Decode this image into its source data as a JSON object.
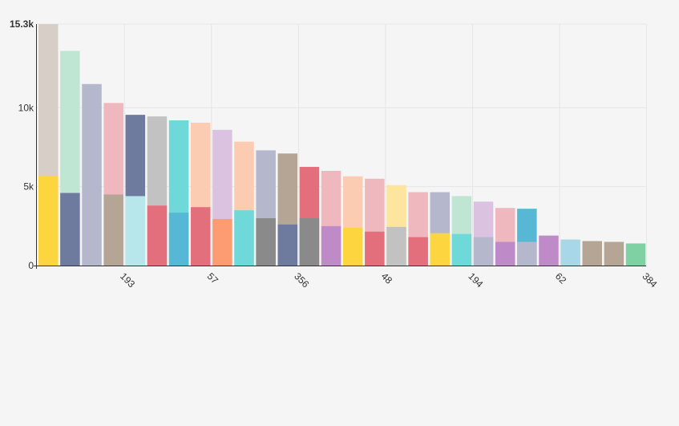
{
  "chart_data": {
    "type": "bar",
    "stacking": "overlay",
    "ylim": [
      0,
      15300
    ],
    "y_ticks": [
      {
        "value": 0,
        "label": "0"
      },
      {
        "value": 5000,
        "label": "5k"
      },
      {
        "value": 10000,
        "label": "10k"
      },
      {
        "value": 15300,
        "label": "15.3k"
      }
    ],
    "x_tick_labels": [
      {
        "after_bar": 3,
        "label": "193"
      },
      {
        "after_bar": 7,
        "label": "57"
      },
      {
        "after_bar": 11,
        "label": "356"
      },
      {
        "after_bar": 15,
        "label": "48"
      },
      {
        "after_bar": 19,
        "label": "194"
      },
      {
        "after_bar": 23,
        "label": "62"
      },
      {
        "after_bar": 27,
        "label": "384"
      }
    ],
    "grid": "on",
    "bars": [
      {
        "back": 15300,
        "back_color": "#d8cec8",
        "front": 5700,
        "front_color": "#fcd53f"
      },
      {
        "back": 13600,
        "back_color": "#bfe6d3",
        "front": 4600,
        "front_color": "#6e7a9e"
      },
      {
        "back": 11500,
        "back_color": "#b5b8cc",
        "front": null,
        "front_color": null
      },
      {
        "back": 10300,
        "back_color": "#efb8be",
        "front": 4500,
        "front_color": "#b5a595"
      },
      {
        "back": 9550,
        "back_color": "#6e7a9e",
        "front": 4400,
        "front_color": "#b7e7eb"
      },
      {
        "back": 9450,
        "back_color": "#c2c2c2",
        "front": 3800,
        "front_color": "#e46f7c"
      },
      {
        "back": 9200,
        "back_color": "#6fd8d8",
        "front": 3350,
        "front_color": "#56b8d5"
      },
      {
        "back": 9050,
        "back_color": "#fcccb2",
        "front": 3700,
        "front_color": "#e46f7c"
      },
      {
        "back": 8600,
        "back_color": "#dbc2e0",
        "front": 2950,
        "front_color": "#fd9c73"
      },
      {
        "back": 7850,
        "back_color": "#fcccb2",
        "front": 3500,
        "front_color": "#6fd8d8"
      },
      {
        "back": 7300,
        "back_color": "#b5b8cc",
        "front": 3000,
        "front_color": "#8a8a8a"
      },
      {
        "back": 7100,
        "back_color": "#b5a595",
        "front": 2600,
        "front_color": "#6e7a9e"
      },
      {
        "back": 6250,
        "back_color": "#e46f7c",
        "front": 3000,
        "front_color": "#8a8a8a"
      },
      {
        "back": 6000,
        "back_color": "#efb8be",
        "front": 2500,
        "front_color": "#bf8ac8"
      },
      {
        "back": 5650,
        "back_color": "#fcccb2",
        "front": 2400,
        "front_color": "#fcd53f"
      },
      {
        "back": 5500,
        "back_color": "#efb8be",
        "front": 2150,
        "front_color": "#e46f7c"
      },
      {
        "back": 5100,
        "back_color": "#fde59e",
        "front": 2450,
        "front_color": "#c2c2c2"
      },
      {
        "back": 4650,
        "back_color": "#efb8be",
        "front": 1800,
        "front_color": "#e46f7c"
      },
      {
        "back": 4650,
        "back_color": "#b5b8cc",
        "front": 2050,
        "front_color": "#fcd53f"
      },
      {
        "back": 4400,
        "back_color": "#bfe6d3",
        "front": 2000,
        "front_color": "#6fd8d8"
      },
      {
        "back": 4050,
        "back_color": "#dbc2e0",
        "front": 1800,
        "front_color": "#b5b8cc"
      },
      {
        "back": 3650,
        "back_color": "#efb8be",
        "front": 1500,
        "front_color": "#bf8ac8"
      },
      {
        "back": 3600,
        "back_color": "#56b8d5",
        "front": 1500,
        "front_color": "#b5b8cc"
      },
      {
        "back": 1900,
        "back_color": "#bf8ac8",
        "front": null,
        "front_color": null
      },
      {
        "back": 1650,
        "back_color": "#a8d8e8",
        "front": null,
        "front_color": null
      },
      {
        "back": 1550,
        "back_color": "#b5a595",
        "front": null,
        "front_color": null
      },
      {
        "back": 1500,
        "back_color": "#b5a595",
        "front": null,
        "front_color": null
      },
      {
        "back": 1400,
        "back_color": "#7fd1a3",
        "front": null,
        "front_color": null
      }
    ]
  },
  "colors": {
    "background": "#f5f5f5",
    "grid": "#e6e6e6",
    "axis": "#333333",
    "text": "#333333"
  }
}
